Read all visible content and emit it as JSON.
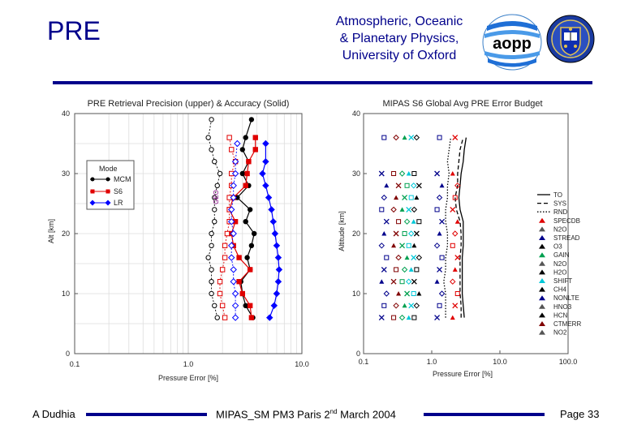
{
  "header": {
    "title": "PRE",
    "institution_lines": [
      "Atmospheric, Oceanic",
      "& Planetary Physics,",
      "University of Oxford"
    ],
    "aopp_logo_text": "aopp"
  },
  "footer": {
    "author": "A Dudhia",
    "meeting_prefix": "MIPAS_SM PM3 Paris 2",
    "meeting_sup": "nd",
    "meeting_suffix": " March 2004",
    "page": "Page 33"
  },
  "colors": {
    "accent": "#00008b",
    "mcm": "#000000",
    "s6": "#e00000",
    "lr": "#0000ff",
    "purple": "#800080",
    "green": "#00a050",
    "cyan": "#00c8d8"
  },
  "chart_data": [
    {
      "type": "scatter",
      "title": "PRE Retrieval Precision (upper) & Accuracy (Solid)",
      "xlabel": "Pressure Error [%]",
      "ylabel": "Alt [km]",
      "xscale": "log",
      "xlim": [
        0.1,
        10
      ],
      "ylim": [
        0,
        40
      ],
      "xticks": [
        "0.1",
        "1.0",
        "10.0"
      ],
      "yticks": [
        "0",
        "10",
        "20",
        "30",
        "40"
      ],
      "legend": {
        "title": "Mode",
        "entries": [
          "MCM",
          "S6",
          "LR"
        ],
        "placement": "upper-left"
      },
      "annotations": [
        {
          "text": "GEO",
          "x": 2.4,
          "y": 24
        }
      ],
      "series": [
        {
          "name": "MCM accuracy",
          "color": "#000000",
          "marker": "circle",
          "y": [
            6,
            8,
            10,
            12,
            14,
            16,
            18,
            20,
            22,
            24,
            26,
            28,
            30,
            32,
            34,
            36,
            39
          ],
          "x": [
            3.7,
            3.2,
            3.0,
            2.9,
            3.5,
            3.3,
            3.6,
            3.8,
            3.2,
            3.5,
            2.7,
            3.4,
            3.0,
            3.4,
            3.0,
            3.2,
            3.6
          ]
        },
        {
          "name": "S6 accuracy",
          "color": "#e00000",
          "marker": "square",
          "y": [
            6,
            8,
            10,
            12,
            14,
            16,
            18,
            20,
            22,
            24,
            26,
            28,
            30,
            32,
            34,
            36
          ],
          "x": [
            3.6,
            3.5,
            3.0,
            2.8,
            3.5,
            2.8,
            2.5,
            2.4,
            2.6,
            2.3,
            2.5,
            3.2,
            3.3,
            3.4,
            3.9,
            3.9
          ]
        },
        {
          "name": "LR accuracy",
          "color": "#0000ff",
          "marker": "diamond",
          "y": [
            6,
            8,
            10,
            12,
            14,
            16,
            18,
            20,
            22,
            24,
            26,
            28,
            30,
            32,
            35
          ],
          "x": [
            5.2,
            5.7,
            6.0,
            6.2,
            6.3,
            6.2,
            6.0,
            5.8,
            5.6,
            5.4,
            5.1,
            4.8,
            4.5,
            4.8,
            4.8
          ]
        },
        {
          "name": "MCM precision",
          "color": "#000000",
          "marker": "circle-open",
          "y": [
            6,
            8,
            10,
            12,
            14,
            16,
            18,
            20,
            22,
            24,
            26,
            28,
            30,
            32,
            34,
            36,
            39
          ],
          "x": [
            1.8,
            1.7,
            1.6,
            1.6,
            1.6,
            1.5,
            1.6,
            1.6,
            1.7,
            1.7,
            1.7,
            1.8,
            1.9,
            1.7,
            1.6,
            1.5,
            1.6
          ]
        },
        {
          "name": "S6 precision",
          "color": "#e00000",
          "marker": "square-open",
          "y": [
            6,
            8,
            10,
            12,
            14,
            16,
            18,
            20,
            22,
            24,
            26,
            28,
            30,
            32,
            34,
            36
          ],
          "x": [
            2.1,
            2.0,
            1.9,
            1.9,
            2.0,
            2.1,
            2.1,
            2.2,
            2.3,
            2.3,
            2.3,
            2.4,
            2.4,
            2.6,
            2.4,
            2.3
          ]
        },
        {
          "name": "LR precision",
          "color": "#0000ff",
          "marker": "diamond-open",
          "y": [
            6,
            8,
            10,
            12,
            14,
            16,
            18,
            20,
            22,
            24,
            26,
            28,
            30,
            32,
            35
          ],
          "x": [
            2.6,
            2.6,
            2.6,
            2.5,
            2.5,
            2.4,
            2.4,
            2.5,
            2.4,
            2.4,
            2.5,
            2.5,
            2.6,
            2.6,
            2.7
          ]
        }
      ]
    },
    {
      "type": "line",
      "title": "MIPAS S6 Global Avg PRE Error Budget",
      "xlabel": "Pressure Error [%]",
      "ylabel": "Altitude [km]",
      "xscale": "log",
      "xlim": [
        0.1,
        100
      ],
      "ylim": [
        0,
        40
      ],
      "xticks": [
        "0.1",
        "1.0",
        "10.0",
        "100.0"
      ],
      "yticks": [
        "0",
        "10",
        "20",
        "30",
        "40"
      ],
      "legend": {
        "placement": "right",
        "entries": [
          "TO",
          "SYS",
          "RND",
          "SPECDB",
          "N2O",
          "STREAD",
          "O3",
          "GAIN",
          "N2O",
          "H2O",
          "SHIFT",
          "CH4",
          "NONLTE",
          "HNO3",
          "HCN",
          "CTMERR",
          "NO2"
        ]
      },
      "lines": [
        {
          "name": "TO",
          "style": "solid",
          "y": [
            6,
            8,
            10,
            12,
            14,
            16,
            18,
            20,
            22,
            24,
            26,
            28,
            30,
            32,
            34,
            36
          ],
          "x": [
            3.0,
            2.9,
            2.8,
            2.8,
            2.8,
            2.8,
            2.9,
            2.9,
            2.9,
            2.6,
            2.5,
            2.6,
            2.7,
            2.9,
            3.0,
            3.2
          ]
        },
        {
          "name": "SYS",
          "style": "dashed",
          "y": [
            6,
            8,
            10,
            12,
            14,
            16,
            18,
            20,
            22,
            24,
            26,
            28,
            30,
            32,
            34,
            36
          ],
          "x": [
            2.7,
            2.7,
            2.6,
            2.6,
            2.6,
            2.6,
            2.7,
            2.7,
            2.6,
            2.3,
            2.2,
            2.4,
            2.4,
            2.5,
            2.6,
            2.9
          ]
        },
        {
          "name": "RND",
          "style": "dotted",
          "y": [
            6,
            8,
            10,
            12,
            14,
            16,
            18,
            20,
            22,
            24,
            26,
            28,
            30,
            32,
            34,
            36
          ],
          "x": [
            1.6,
            1.6,
            1.6,
            1.5,
            1.6,
            1.6,
            1.7,
            1.7,
            1.6,
            1.6,
            1.7,
            1.7,
            1.8,
            1.7,
            1.8,
            1.9
          ]
        }
      ],
      "symbol_columns": [
        {
          "name": "SPECDB",
          "color": "#e00000",
          "x": 2.2
        },
        {
          "name": "STREAD",
          "color": "#00008b",
          "x": 1.3
        },
        {
          "name": "N2O",
          "color": "#000000",
          "x": 0.6
        },
        {
          "name": "GAIN",
          "color": "#00a050",
          "x": 0.4
        },
        {
          "name": "SHIFT",
          "color": "#00c8d8",
          "x": 0.5
        },
        {
          "name": "NONLTE",
          "color": "#00008b",
          "x": 0.2
        },
        {
          "name": "CTMERR",
          "color": "#800000",
          "x": 0.3
        }
      ],
      "symbol_altitudes": [
        6,
        8,
        10,
        12,
        14,
        16,
        18,
        20,
        22,
        24,
        26,
        28,
        30,
        36
      ]
    }
  ]
}
